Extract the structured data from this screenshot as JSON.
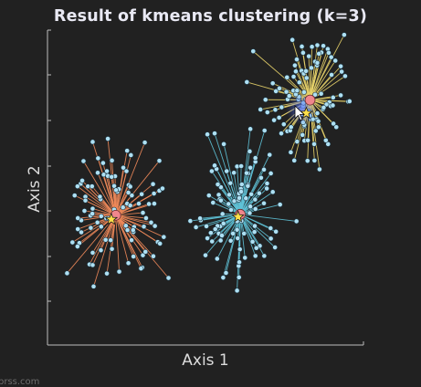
{
  "chart_data": {
    "type": "scatter",
    "title": "Result of kmeans clustering (k=3)",
    "xlabel": "Axis 1",
    "ylabel": "Axis 2",
    "xlim": [
      0,
      10
    ],
    "ylim": [
      0,
      10
    ],
    "grid": false,
    "legend": "none",
    "colors": {
      "background": "#212121",
      "axis": "#bdbdbd",
      "point": "#aee0f3",
      "point_edge": "#1b3340",
      "centroid": "#f0868c",
      "initial_centroid": "#ffe04a",
      "lines": [
        "#f08a5a",
        "#5fc3d8",
        "#e9d46a"
      ]
    },
    "series": [
      {
        "centroid": [
          2.16,
          4.12
        ],
        "initial_centroid": [
          2.02,
          3.99
        ],
        "points": [
          [
            1.43,
            6.45
          ],
          [
            1.68,
            4.63
          ],
          [
            2.21,
            4.87
          ],
          [
            0.96,
            3.68
          ],
          [
            2.52,
            4.49
          ],
          [
            3.08,
            6.43
          ],
          [
            1.7,
            3.74
          ],
          [
            1.43,
            2.93
          ],
          [
            1.05,
            5.12
          ],
          [
            2.26,
            4.95
          ],
          [
            1.14,
            5.84
          ],
          [
            3.38,
            4.49
          ],
          [
            3.02,
            2.85
          ],
          [
            1.84,
            3.34
          ],
          [
            2.04,
            3.05
          ],
          [
            1.66,
            4.71
          ],
          [
            1.43,
            4.33
          ],
          [
            0.79,
            3.26
          ],
          [
            2.57,
            5.08
          ],
          [
            2.72,
            2.81
          ],
          [
            2.04,
            5.86
          ],
          [
            2.53,
            3.65
          ],
          [
            2.56,
            2.6
          ],
          [
            2.48,
            3.79
          ],
          [
            3.0,
            2.46
          ],
          [
            2.04,
            4.01
          ],
          [
            1.7,
            3.76
          ],
          [
            2.67,
            4.75
          ],
          [
            2.11,
            4.3
          ],
          [
            1.33,
            2.56
          ],
          [
            1.43,
            2.54
          ],
          [
            1.2,
            4.71
          ],
          [
            2.66,
            3.33
          ],
          [
            1.59,
            5.47
          ],
          [
            1.6,
            5.93
          ],
          [
            1.58,
            3.89
          ],
          [
            2.27,
            2.33
          ],
          [
            3.83,
            2.13
          ],
          [
            0.86,
            4.75
          ],
          [
            1.69,
            3.01
          ],
          [
            3.54,
            5.85
          ],
          [
            2.62,
            5.03
          ],
          [
            3.35,
            2.82
          ],
          [
            2.11,
            5.05
          ],
          [
            1.86,
            4.02
          ],
          [
            1.46,
            1.86
          ],
          [
            1.88,
            2.27
          ],
          [
            3.49,
            3.27
          ],
          [
            0.62,
            2.28
          ],
          [
            2.98,
            4.79
          ],
          [
            1.07,
            3.96
          ],
          [
            3.05,
            3.76
          ],
          [
            1.88,
            5.52
          ],
          [
            2.89,
            4.49
          ],
          [
            1.78,
            5.41
          ],
          [
            2.17,
            4.92
          ],
          [
            1.91,
            5.37
          ],
          [
            2.56,
            4.84
          ],
          [
            2.64,
            6.03
          ],
          [
            3.56,
            3.22
          ],
          [
            0.96,
            4.03
          ],
          [
            2.72,
            3.59
          ],
          [
            3.21,
            4.48
          ],
          [
            1.1,
            5.22
          ],
          [
            2.74,
            3.75
          ],
          [
            2.96,
            2.43
          ],
          [
            1.93,
            4.02
          ],
          [
            3.54,
            4.9
          ],
          [
            3.1,
            2.96
          ],
          [
            1.36,
            4.11
          ],
          [
            2.14,
            5.36
          ],
          [
            1.7,
            4.09
          ],
          [
            1.91,
            6.55
          ],
          [
            1.28,
            5.04
          ],
          [
            3.4,
            3.78
          ],
          [
            2.5,
            5.52
          ],
          [
            3.12,
            4.03
          ],
          [
            0.95,
            5.04
          ],
          [
            1.41,
            5.04
          ],
          [
            3.34,
            5.11
          ],
          [
            2.71,
            3.65
          ],
          [
            3.02,
            4.2
          ],
          [
            3.68,
            3.43
          ],
          [
            1.01,
            3.24
          ],
          [
            2.62,
            4.43
          ],
          [
            2.4,
            5.63
          ],
          [
            1.76,
            5.78
          ],
          [
            1.42,
            4.17
          ],
          [
            2.52,
            6.17
          ],
          [
            0.95,
            3.13
          ],
          [
            2.03,
            5.34
          ],
          [
            1.37,
            3.72
          ],
          [
            2.39,
            4.37
          ],
          [
            3.28,
            3.89
          ],
          [
            1.2,
            4.59
          ],
          [
            3.37,
            4.81
          ],
          [
            2.0,
            3.33
          ],
          [
            3.64,
            4.97
          ],
          [
            1.17,
            4.26
          ],
          [
            1.07,
            3.58
          ]
        ]
      },
      {
        "centroid": [
          6.1,
          4.15
        ],
        "initial_centroid": [
          6.03,
          4.07
        ],
        "points": [
          [
            5.03,
            3.77
          ],
          [
            6.22,
            3.54
          ],
          [
            5.47,
            3.77
          ],
          [
            6.42,
            6.86
          ],
          [
            6.35,
            5.45
          ],
          [
            5.75,
            4.77
          ],
          [
            6.86,
            2.83
          ],
          [
            6.15,
            3.97
          ],
          [
            4.85,
            3.96
          ],
          [
            5.17,
            3.56
          ],
          [
            6.45,
            4.79
          ],
          [
            7.2,
            3.1
          ],
          [
            5.49,
            5.01
          ],
          [
            6.87,
            6.81
          ],
          [
            6.12,
            4.96
          ],
          [
            6.72,
            3.15
          ],
          [
            6.05,
            2.51
          ],
          [
            6.35,
            5.09
          ],
          [
            5.42,
            3.54
          ],
          [
            6.58,
            4.32
          ],
          [
            5.35,
            5.59
          ],
          [
            5.2,
            5.52
          ],
          [
            5.06,
            3.39
          ],
          [
            5.29,
            5.7
          ],
          [
            7.36,
            4.46
          ],
          [
            5.9,
            5.47
          ],
          [
            6.58,
            5.82
          ],
          [
            5.58,
            6.38
          ],
          [
            6.0,
            1.73
          ],
          [
            5.0,
            2.85
          ],
          [
            5.37,
            2.74
          ],
          [
            6.0,
            5.67
          ],
          [
            6.14,
            3.94
          ],
          [
            6.13,
            5.68
          ],
          [
            6.3,
            5.46
          ],
          [
            5.29,
            6.72
          ],
          [
            7.07,
            3.38
          ],
          [
            6.15,
            5.1
          ],
          [
            7.07,
            5.45
          ],
          [
            5.06,
            6.69
          ],
          [
            6.06,
            2.15
          ],
          [
            6.06,
            4.81
          ],
          [
            7.13,
            4.86
          ],
          [
            6.85,
            4.5
          ],
          [
            6.4,
            4.19
          ],
          [
            6.13,
            4.87
          ],
          [
            7.03,
            6.04
          ],
          [
            7.23,
            3.6
          ],
          [
            6.0,
            3.66
          ],
          [
            5.52,
            3.48
          ],
          [
            5.91,
            4.57
          ],
          [
            5.87,
            3.54
          ],
          [
            6.49,
            3.28
          ],
          [
            5.81,
            4.29
          ],
          [
            6.76,
            5.31
          ],
          [
            5.79,
            5.14
          ],
          [
            4.83,
            4.02
          ],
          [
            5.48,
            3.32
          ],
          [
            5.39,
            5.1
          ],
          [
            6.42,
            5.63
          ],
          [
            5.21,
            3.29
          ],
          [
            6.07,
            2.63
          ],
          [
            5.11,
            4.75
          ],
          [
            5.42,
            4.77
          ],
          [
            5.67,
            5.52
          ],
          [
            6.94,
            4.97
          ],
          [
            6.7,
            4.82
          ],
          [
            7.06,
            3.71
          ],
          [
            6.56,
            3.78
          ],
          [
            5.45,
            4.63
          ],
          [
            5.54,
            4.16
          ],
          [
            6.28,
            4.66
          ],
          [
            6.09,
            3.04
          ],
          [
            5.49,
            4.59
          ],
          [
            6.95,
            5.13
          ],
          [
            6.55,
            3.59
          ],
          [
            7.88,
            3.93
          ],
          [
            5.57,
            3.86
          ],
          [
            5.24,
            4.52
          ],
          [
            5.65,
            2.29
          ],
          [
            6.58,
            5.94
          ],
          [
            6.02,
            3.39
          ],
          [
            6.42,
            4.4
          ],
          [
            6.05,
            4.61
          ],
          [
            6.57,
            4.62
          ],
          [
            4.52,
            3.94
          ],
          [
            5.38,
            3.78
          ],
          [
            4.7,
            3.74
          ],
          [
            5.8,
            3.31
          ],
          [
            6.34,
            5.05
          ],
          [
            6.85,
            5.57
          ],
          [
            6.25,
            2.77
          ],
          [
            6.61,
            3.08
          ],
          [
            6.0,
            3.93
          ],
          [
            5.73,
            4.48
          ],
          [
            6.4,
            6.15
          ],
          [
            5.56,
            2.14
          ],
          [
            6.07,
            4.67
          ],
          [
            6.58,
            2.83
          ],
          [
            5.31,
            3.68
          ]
        ]
      },
      {
        "centroid": [
          8.31,
          7.78
        ],
        "initial_centroid": [
          8.19,
          7.36
        ],
        "points": [
          [
            8.54,
            9.52
          ],
          [
            7.21,
            7.47
          ],
          [
            6.51,
            9.33
          ],
          [
            8.35,
            8.8
          ],
          [
            8.34,
            7.17
          ],
          [
            8.13,
            6.95
          ],
          [
            8.92,
            7.71
          ],
          [
            8.09,
            7.59
          ],
          [
            9.05,
            7.03
          ],
          [
            8.87,
            9.4
          ],
          [
            8.28,
            7.42
          ],
          [
            8.52,
            7.17
          ],
          [
            7.94,
            7.8
          ],
          [
            7.83,
            8.88
          ],
          [
            8.04,
            8.71
          ],
          [
            7.79,
            8.52
          ],
          [
            8.13,
            6.49
          ],
          [
            8.1,
            7.69
          ],
          [
            9.52,
            7.73
          ],
          [
            8.66,
            7.98
          ],
          [
            7.86,
            8.69
          ],
          [
            7.13,
            8.31
          ],
          [
            8.47,
            7.95
          ],
          [
            8.67,
            9.29
          ],
          [
            8.05,
            7.33
          ],
          [
            7.48,
            7.01
          ],
          [
            7.96,
            7.88
          ],
          [
            8.96,
            7.59
          ],
          [
            8.11,
            8.62
          ],
          [
            8.13,
            6.99
          ],
          [
            8.2,
            8.48
          ],
          [
            9.04,
            7.86
          ],
          [
            8.61,
            5.58
          ],
          [
            7.89,
            9.07
          ],
          [
            8.98,
            9.14
          ],
          [
            8.3,
            7.28
          ],
          [
            8.88,
            6.38
          ],
          [
            9.42,
            8.54
          ],
          [
            7.97,
            8.34
          ],
          [
            8.18,
            7.8
          ],
          [
            8.12,
            8.03
          ],
          [
            8.47,
            9.0
          ],
          [
            8.44,
            6.38
          ],
          [
            7.56,
            8.04
          ],
          [
            7.59,
            6.79
          ],
          [
            6.96,
            7.39
          ],
          [
            7.75,
            9.69
          ],
          [
            8.83,
            7.64
          ],
          [
            7.78,
            8.08
          ],
          [
            8.49,
            6.8
          ],
          [
            7.6,
            7.8
          ],
          [
            7.7,
            6.12
          ],
          [
            7.23,
            8.06
          ],
          [
            7.81,
            5.86
          ],
          [
            7.34,
            8.15
          ],
          [
            7.17,
            7.14
          ],
          [
            9.31,
            8.68
          ],
          [
            8.59,
            9.25
          ],
          [
            8.72,
            7.49
          ],
          [
            8.24,
            6.5
          ],
          [
            8.58,
            6.92
          ],
          [
            8.53,
            8.88
          ],
          [
            8.45,
            5.86
          ],
          [
            7.86,
            7.96
          ],
          [
            7.68,
            6.81
          ],
          [
            8.07,
            6.67
          ],
          [
            8.23,
            5.85
          ],
          [
            7.9,
            8.08
          ],
          [
            8.18,
            8.7
          ],
          [
            9.28,
            8.85
          ],
          [
            8.81,
            6.5
          ],
          [
            7.9,
            6.46
          ],
          [
            8.54,
            8.96
          ],
          [
            7.41,
            7.55
          ],
          [
            9.14,
            6.92
          ],
          [
            7.4,
            6.72
          ],
          [
            7.58,
            8.5
          ],
          [
            8.73,
            9.5
          ],
          [
            8.9,
            9.28
          ],
          [
            9.56,
            7.74
          ],
          [
            8.57,
            7.11
          ],
          [
            8.54,
            7.36
          ],
          [
            7.65,
            7.91
          ],
          [
            8.09,
            9.28
          ],
          [
            6.31,
            8.35
          ],
          [
            8.4,
            7.17
          ],
          [
            8.74,
            7.54
          ],
          [
            8.99,
            8.58
          ],
          [
            9.03,
            7.61
          ],
          [
            8.05,
            9.48
          ],
          [
            9.28,
            7.93
          ],
          [
            9.11,
            9.03
          ],
          [
            6.74,
            7.48
          ],
          [
            9.39,
            9.85
          ],
          [
            6.9,
            7.79
          ],
          [
            7.33,
            7.22
          ],
          [
            8.09,
            7.07
          ],
          [
            8.27,
            9.17
          ],
          [
            8.37,
            9.47
          ],
          [
            7.71,
            6.92
          ]
        ]
      }
    ]
  },
  "watermark": "prss.com"
}
